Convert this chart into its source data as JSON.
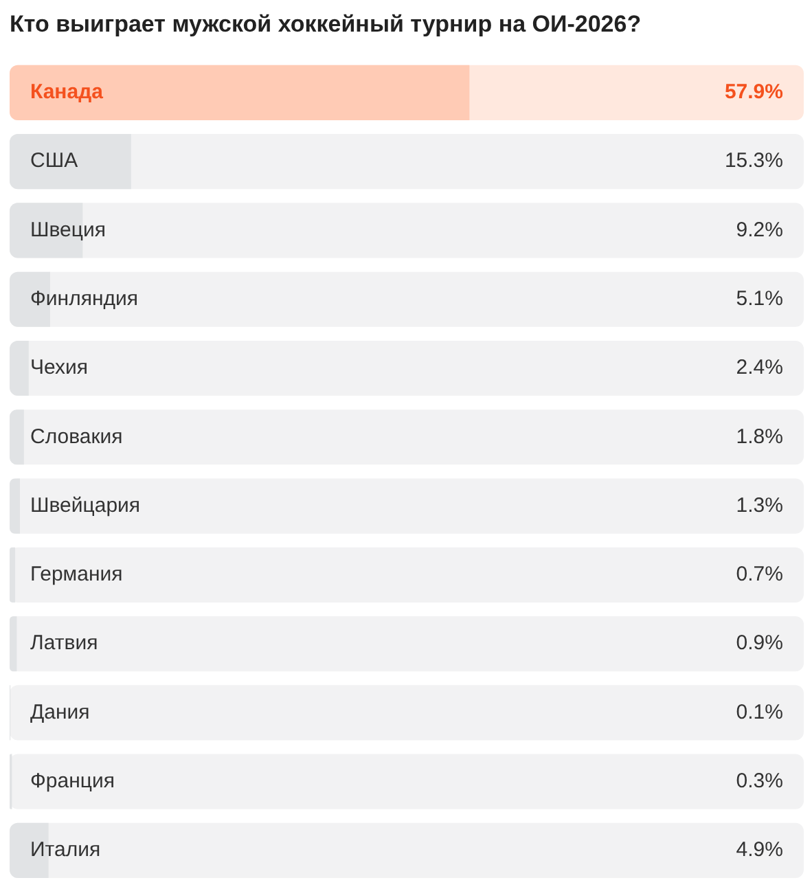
{
  "chart_data": {
    "type": "bar",
    "orientation": "horizontal",
    "title": "Кто выиграет мужской хоккейный турнир на ОИ-2026?",
    "categories": [
      "Канада",
      "США",
      "Швеция",
      "Финляндия",
      "Чехия",
      "Словакия",
      "Швейцария",
      "Германия",
      "Латвия",
      "Дания",
      "Франция",
      "Италия"
    ],
    "values": [
      57.9,
      15.3,
      9.2,
      5.1,
      2.4,
      1.8,
      1.3,
      0.7,
      0.9,
      0.1,
      0.3,
      4.9
    ],
    "colors": [
      "#ffcbb5",
      "#e1e3e5",
      "#e1e3e5",
      "#e1e3e5",
      "#e1e3e5",
      "#e1e3e5",
      "#e1e3e5",
      "#e1e3e5",
      "#e1e3e5",
      "#e1e3e5",
      "#e1e3e5",
      "#e1e3e5"
    ],
    "value_labels": [
      "57.9%",
      "15.3%",
      "9.2%",
      "5.1%",
      "2.4%",
      "1.8%",
      "1.3%",
      "0.7%",
      "0.9%",
      "0.1%",
      "0.3%",
      "4.9%"
    ],
    "xlim": [
      0,
      100
    ],
    "tick_labels": false,
    "legend": false
  }
}
